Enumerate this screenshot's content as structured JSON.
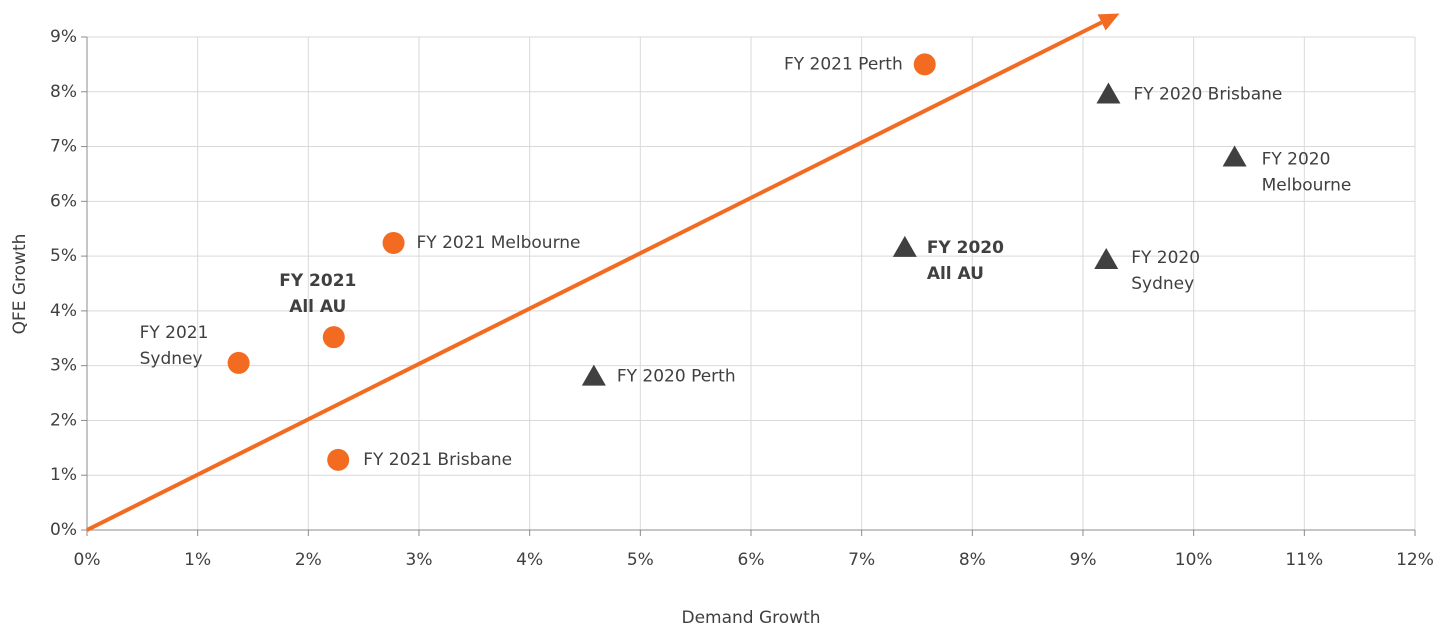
{
  "chart_data": {
    "type": "scatter",
    "x_label": "Demand Growth",
    "y_label": "QFE Growth",
    "xlim": [
      0,
      12
    ],
    "ylim": [
      0,
      9
    ],
    "xticks": [
      {
        "value": 0,
        "label": "0%"
      },
      {
        "value": 1,
        "label": "1%"
      },
      {
        "value": 2,
        "label": "2%"
      },
      {
        "value": 3,
        "label": "3%"
      },
      {
        "value": 4,
        "label": "4%"
      },
      {
        "value": 5,
        "label": "5%"
      },
      {
        "value": 6,
        "label": "6%"
      },
      {
        "value": 7,
        "label": "7%"
      },
      {
        "value": 8,
        "label": "8%"
      },
      {
        "value": 9,
        "label": "9%"
      },
      {
        "value": 10,
        "label": "10%"
      },
      {
        "value": 11,
        "label": "11%"
      },
      {
        "value": 12,
        "label": "12%"
      }
    ],
    "yticks": [
      {
        "value": 0,
        "label": "0%"
      },
      {
        "value": 1,
        "label": "1%"
      },
      {
        "value": 2,
        "label": "2%"
      },
      {
        "value": 3,
        "label": "3%"
      },
      {
        "value": 4,
        "label": "4%"
      },
      {
        "value": 5,
        "label": "5%"
      },
      {
        "value": 6,
        "label": "6%"
      },
      {
        "value": 7,
        "label": "7%"
      },
      {
        "value": 8,
        "label": "8%"
      },
      {
        "value": 9,
        "label": "9%"
      }
    ],
    "grid": true,
    "series": [
      {
        "color": "#f26b21",
        "marker": "circle",
        "x": [
          7.57,
          2.77,
          2.23,
          1.37,
          2.27
        ],
        "values": [
          8.5,
          5.24,
          3.52,
          3.05,
          1.28
        ],
        "labels": [
          [
            "FY 2021 Perth"
          ],
          [
            "FY 2021 Melbourne"
          ],
          [
            "FY 2021",
            "All AU"
          ],
          [
            "FY 2021",
            "Sydney"
          ],
          [
            "FY 2021 Brisbane"
          ]
        ],
        "bold": [
          false,
          false,
          true,
          false,
          false
        ]
      },
      {
        "color": "#404040",
        "marker": "triangle",
        "x": [
          9.23,
          10.37,
          7.39,
          9.21,
          4.58
        ],
        "values": [
          7.95,
          6.8,
          5.15,
          4.93,
          2.8
        ],
        "labels": [
          [
            "FY 2020 Brisbane"
          ],
          [
            "FY 2020",
            "Melbourne"
          ],
          [
            "FY 2020",
            "All AU"
          ],
          [
            "FY 2020",
            "Sydney"
          ],
          [
            "FY 2020 Perth"
          ]
        ],
        "bold": [
          false,
          false,
          true,
          false,
          false
        ]
      }
    ],
    "trend_line": {
      "color": "#f26b21",
      "x": [
        0,
        9.33
      ],
      "y": [
        0,
        9.43
      ]
    }
  }
}
